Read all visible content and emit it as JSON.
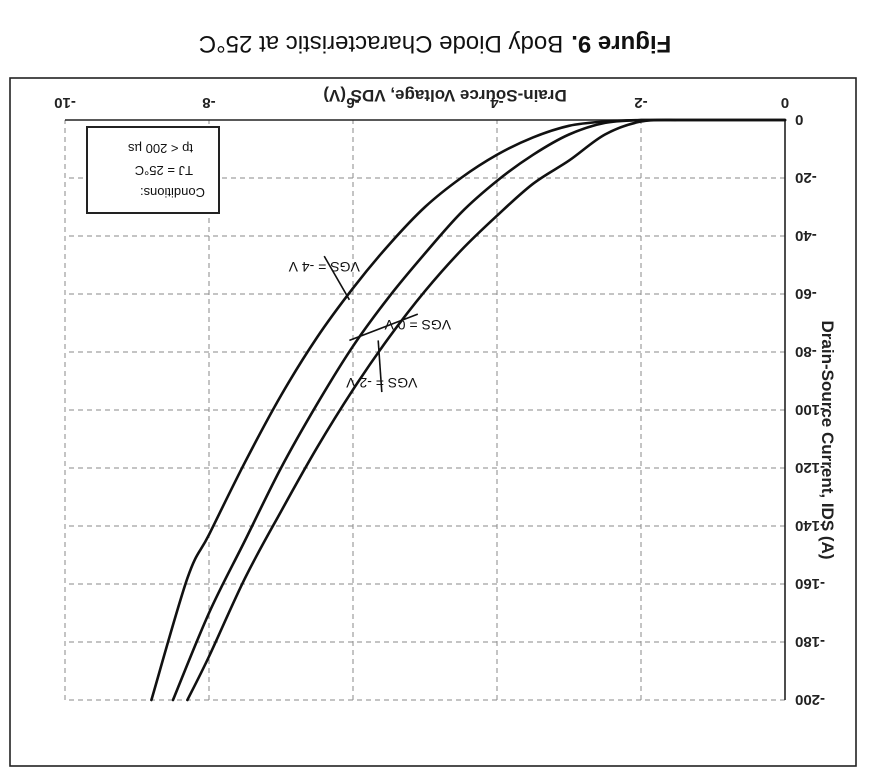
{
  "figure": {
    "label": "Figure 9.",
    "caption": "Body Diode Characteristic at 25°C"
  },
  "chart_data": {
    "type": "line",
    "rendered_rotation_deg": 180,
    "xlabel": "Drain-Source Voltage, VDS (V)",
    "ylabel": "Drain-Source Current, IDS (A)",
    "xlim": [
      -10,
      0
    ],
    "ylim": [
      -200,
      0
    ],
    "x_ticks": [
      0,
      -2,
      -4,
      -6,
      -8,
      -10
    ],
    "y_ticks": [
      0,
      -20,
      -40,
      -60,
      -80,
      -100,
      -120,
      -140,
      -160,
      -180,
      -200
    ],
    "x_tick_labels": [
      "0",
      "-2",
      "-4",
      "-6",
      "-8",
      "-10"
    ],
    "y_tick_labels": [
      "0",
      "-20",
      "-40",
      "-60",
      "-80",
      "-100",
      "-120",
      "-140",
      "-160",
      "-180",
      "-200"
    ],
    "grid": true,
    "series": [
      {
        "name": "VGS = -4 V",
        "x": [
          -2.0,
          -2.5,
          -3.0,
          -3.5,
          -4.0,
          -4.5,
          -5.0,
          -5.5,
          -6.0,
          -6.5,
          -7.0,
          -7.5,
          -8.0,
          -8.3,
          -8.8
        ],
        "y": [
          0,
          -0.5,
          -2,
          -6,
          -12,
          -20,
          -30,
          -43,
          -58,
          -75,
          -95,
          -118,
          -143,
          -158,
          -200
        ]
      },
      {
        "name": "VGS = 0 V",
        "x": [
          -2.0,
          -2.5,
          -3.0,
          -3.5,
          -4.0,
          -4.5,
          -5.0,
          -5.5,
          -6.0,
          -6.5,
          -7.0,
          -7.5,
          -8.0,
          -8.5
        ],
        "y": [
          0,
          -1,
          -5,
          -12,
          -21,
          -32,
          -46,
          -61,
          -78,
          -98,
          -120,
          -145,
          -170,
          -200
        ]
      },
      {
        "name": "VGS = -2 V",
        "x": [
          -1.5,
          -2.0,
          -2.5,
          -3.0,
          -3.5,
          -4.0,
          -4.5,
          -5.0,
          -5.5,
          -6.0,
          -6.5,
          -7.0,
          -7.5,
          -8.0,
          -8.3
        ],
        "y": [
          0,
          -0.5,
          -5,
          -14,
          -22,
          -33,
          -45,
          -59,
          -75,
          -93,
          -113,
          -135,
          -158,
          -185,
          -200
        ]
      }
    ],
    "annotations": [
      {
        "text": "VGS = -2 V",
        "x": -5.6,
        "y": -89,
        "target_x": -5.65,
        "target_y": -76
      },
      {
        "text": "VGS = 0 V",
        "x": -5.1,
        "y": -69,
        "target_x": -6.05,
        "target_y": -76
      },
      {
        "text": "VGS = -4 V",
        "x": -6.4,
        "y": -49,
        "target_x": -6.05,
        "target_y": -62
      }
    ],
    "conditions": {
      "title": "Conditions:",
      "lines": [
        "TJ = 25°C",
        "tp < 200 µs"
      ]
    }
  }
}
